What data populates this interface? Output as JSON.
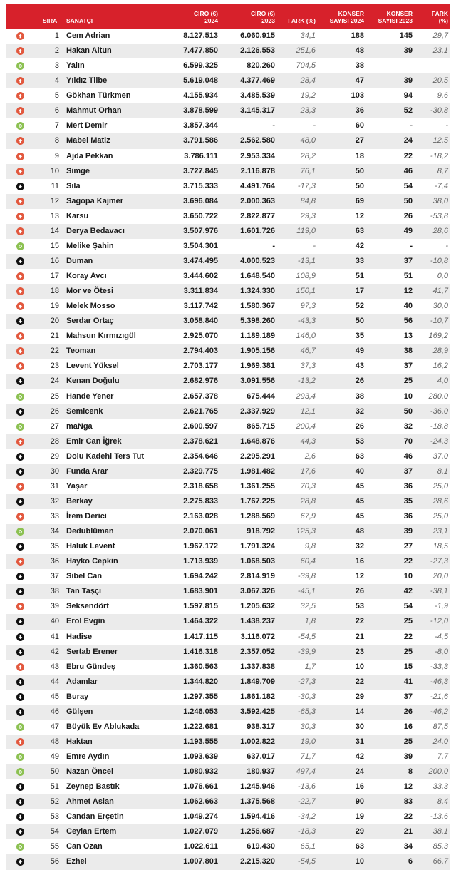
{
  "header": {
    "sira": "SIRA",
    "sanatci": "SANATÇI",
    "ciro2024": "CİRO (€)\n2024",
    "ciro2023": "CİRO (€)\n2023",
    "fark": "FARK (%)",
    "konser2024": "KONSER\nSAYISI 2024",
    "konser2023": "KONSER\nSAYISI 2023",
    "konser_fark": "FARK\n(%)"
  },
  "colors": {
    "header": "#d7212b",
    "up": "#e2583e",
    "new": "#8cc152",
    "down": "#111111"
  },
  "rows": [
    [
      "up",
      "1",
      "Cem Adrian",
      "8.127.513",
      "6.060.915",
      "34,1",
      "188",
      "145",
      "29,7"
    ],
    [
      "up",
      "2",
      "Hakan Altun",
      "7.477.850",
      "2.126.553",
      "251,6",
      "48",
      "39",
      "23,1"
    ],
    [
      "new",
      "3",
      "Yalın",
      "6.599.325",
      "820.260",
      "704,5",
      "38",
      "",
      ""
    ],
    [
      "up",
      "4",
      "Yıldız Tilbe",
      "5.619.048",
      "4.377.469",
      "28,4",
      "47",
      "39",
      "20,5"
    ],
    [
      "up",
      "5",
      "Gökhan Türkmen",
      "4.155.934",
      "3.485.539",
      "19,2",
      "103",
      "94",
      "9,6"
    ],
    [
      "up",
      "6",
      "Mahmut Orhan",
      "3.878.599",
      "3.145.317",
      "23,3",
      "36",
      "52",
      "-30,8"
    ],
    [
      "new",
      "7",
      "Mert Demir",
      "3.857.344",
      "-",
      "-",
      "60",
      "-",
      "-"
    ],
    [
      "up",
      "8",
      "Mabel Matiz",
      "3.791.586",
      "2.562.580",
      "48,0",
      "27",
      "24",
      "12,5"
    ],
    [
      "up",
      "9",
      "Ajda Pekkan",
      "3.786.111",
      "2.953.334",
      "28,2",
      "18",
      "22",
      "-18,2"
    ],
    [
      "up",
      "10",
      "Simge",
      "3.727.845",
      "2.116.878",
      "76,1",
      "50",
      "46",
      "8,7"
    ],
    [
      "down",
      "11",
      "Sıla",
      "3.715.333",
      "4.491.764",
      "-17,3",
      "50",
      "54",
      "-7,4"
    ],
    [
      "up",
      "12",
      "Sagopa Kajmer",
      "3.696.084",
      "2.000.363",
      "84,8",
      "69",
      "50",
      "38,0"
    ],
    [
      "up",
      "13",
      "Karsu",
      "3.650.722",
      "2.822.877",
      "29,3",
      "12",
      "26",
      "-53,8"
    ],
    [
      "up",
      "14",
      "Derya Bedavacı",
      "3.507.976",
      "1.601.726",
      "119,0",
      "63",
      "49",
      "28,6"
    ],
    [
      "new",
      "15",
      "Melike Şahin",
      "3.504.301",
      "-",
      "-",
      "42",
      "-",
      "-"
    ],
    [
      "down",
      "16",
      "Duman",
      "3.474.495",
      "4.000.523",
      "-13,1",
      "33",
      "37",
      "-10,8"
    ],
    [
      "up",
      "17",
      "Koray Avcı",
      "3.444.602",
      "1.648.540",
      "108,9",
      "51",
      "51",
      "0,0"
    ],
    [
      "up",
      "18",
      "Mor ve Ötesi",
      "3.311.834",
      "1.324.330",
      "150,1",
      "17",
      "12",
      "41,7"
    ],
    [
      "up",
      "19",
      "Melek Mosso",
      "3.117.742",
      "1.580.367",
      "97,3",
      "52",
      "40",
      "30,0"
    ],
    [
      "down",
      "20",
      "Serdar Ortaç",
      "3.058.840",
      "5.398.260",
      "-43,3",
      "50",
      "56",
      "-10,7"
    ],
    [
      "up",
      "21",
      "Mahsun Kırmızıgül",
      "2.925.070",
      "1.189.189",
      "146,0",
      "35",
      "13",
      "169,2"
    ],
    [
      "up",
      "22",
      "Teoman",
      "2.794.403",
      "1.905.156",
      "46,7",
      "49",
      "38",
      "28,9"
    ],
    [
      "up",
      "23",
      "Levent Yüksel",
      "2.703.177",
      "1.969.381",
      "37,3",
      "43",
      "37",
      "16,2"
    ],
    [
      "down",
      "24",
      "Kenan Doğulu",
      "2.682.976",
      "3.091.556",
      "-13,2",
      "26",
      "25",
      "4,0"
    ],
    [
      "new",
      "25",
      "Hande Yener",
      "2.657.378",
      "675.444",
      "293,4",
      "38",
      "10",
      "280,0"
    ],
    [
      "down",
      "26",
      "Semicenk",
      "2.621.765",
      "2.337.929",
      "12,1",
      "32",
      "50",
      "-36,0"
    ],
    [
      "new",
      "27",
      "maNga",
      "2.600.597",
      "865.715",
      "200,4",
      "26",
      "32",
      "-18,8"
    ],
    [
      "up",
      "28",
      "Emir Can İğrek",
      "2.378.621",
      "1.648.876",
      "44,3",
      "53",
      "70",
      "-24,3"
    ],
    [
      "down",
      "29",
      "Dolu Kadehi Ters Tut",
      "2.354.646",
      "2.295.291",
      "2,6",
      "63",
      "46",
      "37,0"
    ],
    [
      "down",
      "30",
      "Funda Arar",
      "2.329.775",
      "1.981.482",
      "17,6",
      "40",
      "37",
      "8,1"
    ],
    [
      "up",
      "31",
      "Yaşar",
      "2.318.658",
      "1.361.255",
      "70,3",
      "45",
      "36",
      "25,0"
    ],
    [
      "down",
      "32",
      "Berkay",
      "2.275.833",
      "1.767.225",
      "28,8",
      "45",
      "35",
      "28,6"
    ],
    [
      "up",
      "33",
      "İrem Derici",
      "2.163.028",
      "1.288.569",
      "67,9",
      "45",
      "36",
      "25,0"
    ],
    [
      "new",
      "34",
      "Dedublüman",
      "2.070.061",
      "918.792",
      "125,3",
      "48",
      "39",
      "23,1"
    ],
    [
      "down",
      "35",
      "Haluk Levent",
      "1.967.172",
      "1.791.324",
      "9,8",
      "32",
      "27",
      "18,5"
    ],
    [
      "up",
      "36",
      "Hayko Cepkin",
      "1.713.939",
      "1.068.503",
      "60,4",
      "16",
      "22",
      "-27,3"
    ],
    [
      "down",
      "37",
      "Sibel Can",
      "1.694.242",
      "2.814.919",
      "-39,8",
      "12",
      "10",
      "20,0"
    ],
    [
      "down",
      "38",
      "Tan Taşçı",
      "1.683.901",
      "3.067.326",
      "-45,1",
      "26",
      "42",
      "-38,1"
    ],
    [
      "up",
      "39",
      "Seksendört",
      "1.597.815",
      "1.205.632",
      "32,5",
      "53",
      "54",
      "-1,9"
    ],
    [
      "down",
      "40",
      "Erol Evgin",
      "1.464.322",
      "1.438.237",
      "1,8",
      "22",
      "25",
      "-12,0"
    ],
    [
      "down",
      "41",
      "Hadise",
      "1.417.115",
      "3.116.072",
      "-54,5",
      "21",
      "22",
      "-4,5"
    ],
    [
      "down",
      "42",
      "Sertab Erener",
      "1.416.318",
      "2.357.052",
      "-39,9",
      "23",
      "25",
      "-8,0"
    ],
    [
      "up",
      "43",
      "Ebru Gündeş",
      "1.360.563",
      "1.337.838",
      "1,7",
      "10",
      "15",
      "-33,3"
    ],
    [
      "down",
      "44",
      "Adamlar",
      "1.344.820",
      "1.849.709",
      "-27,3",
      "22",
      "41",
      "-46,3"
    ],
    [
      "down",
      "45",
      "Buray",
      "1.297.355",
      "1.861.182",
      "-30,3",
      "29",
      "37",
      "-21,6"
    ],
    [
      "down",
      "46",
      "Gülşen",
      "1.246.053",
      "3.592.425",
      "-65,3",
      "14",
      "26",
      "-46,2"
    ],
    [
      "new",
      "47",
      "Büyük Ev Ablukada",
      "1.222.681",
      "938.317",
      "30,3",
      "30",
      "16",
      "87,5"
    ],
    [
      "up",
      "48",
      "Haktan",
      "1.193.555",
      "1.002.822",
      "19,0",
      "31",
      "25",
      "24,0"
    ],
    [
      "new",
      "49",
      "Emre Aydın",
      "1.093.639",
      "637.017",
      "71,7",
      "42",
      "39",
      "7,7"
    ],
    [
      "new",
      "50",
      "Nazan Öncel",
      "1.080.932",
      "180.937",
      "497,4",
      "24",
      "8",
      "200,0"
    ],
    [
      "down",
      "51",
      "Zeynep Bastık",
      "1.076.661",
      "1.245.946",
      "-13,6",
      "16",
      "12",
      "33,3"
    ],
    [
      "down",
      "52",
      "Ahmet Aslan",
      "1.062.663",
      "1.375.568",
      "-22,7",
      "90",
      "83",
      "8,4"
    ],
    [
      "down",
      "53",
      "Candan Erçetin",
      "1.049.274",
      "1.594.416",
      "-34,2",
      "19",
      "22",
      "-13,6"
    ],
    [
      "down",
      "54",
      "Ceylan Ertem",
      "1.027.079",
      "1.256.687",
      "-18,3",
      "29",
      "21",
      "38,1"
    ],
    [
      "new",
      "55",
      "Can Ozan",
      "1.022.611",
      "619.430",
      "65,1",
      "63",
      "34",
      "85,3"
    ],
    [
      "down",
      "56",
      "Ezhel",
      "1.007.801",
      "2.215.320",
      "-54,5",
      "10",
      "6",
      "66,7"
    ]
  ]
}
